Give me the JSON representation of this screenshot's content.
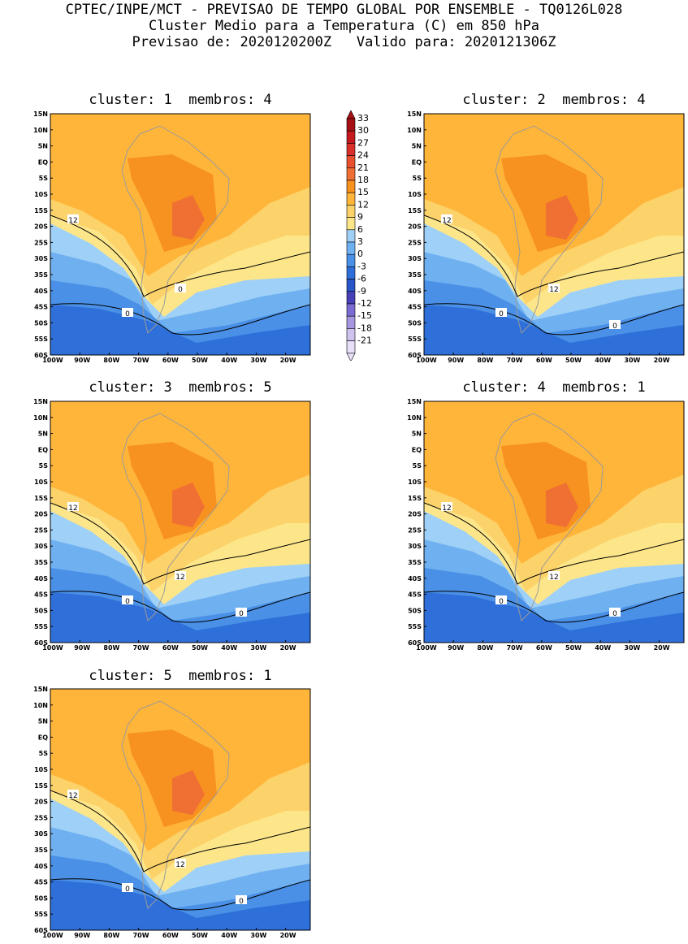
{
  "header": {
    "line1": "CPTEC/INPE/MCT - PREVISAO DE TEMPO GLOBAL POR ENSEMBLE - TQ0126L028",
    "line2": "Cluster Medio para a Temperatura (C) em 850 hPa",
    "line3": "Previsao de: 2020120200Z   Valido para: 2020121306Z"
  },
  "panels": [
    {
      "title": "cluster: 1  membros: 4",
      "contour_labels": [
        "12",
        "0",
        "0"
      ]
    },
    {
      "title": "cluster: 2  membros: 4",
      "contour_labels": [
        "12",
        "12",
        "0",
        "0"
      ]
    },
    {
      "title": "cluster: 3  membros: 5",
      "contour_labels": [
        "12",
        "12",
        "0",
        "0"
      ]
    },
    {
      "title": "cluster: 4  membros: 1",
      "contour_labels": [
        "12",
        "12",
        "0",
        "0"
      ]
    },
    {
      "title": "cluster: 5  membros: 1",
      "contour_labels": [
        "12",
        "12",
        "0",
        "0"
      ]
    }
  ],
  "lat_labels": [
    "15N",
    "10N",
    "5N",
    "EQ",
    "5S",
    "10S",
    "15S",
    "20S",
    "25S",
    "30S",
    "35S",
    "40S",
    "45S",
    "50S",
    "55S",
    "60S"
  ],
  "lon_labels": [
    "100W",
    "90W",
    "80W",
    "70W",
    "60W",
    "50W",
    "40W",
    "30W",
    "20W"
  ],
  "colorbar": {
    "labels": [
      "33",
      "30",
      "27",
      "24",
      "21",
      "18",
      "15",
      "12",
      "9",
      "6",
      "3",
      "0",
      "-3",
      "-6",
      "-9",
      "-12",
      "-15",
      "-18",
      "-21"
    ],
    "colors": [
      "#a50f15",
      "#c41a1f",
      "#d9302a",
      "#e8502f",
      "#f07034",
      "#f7911f",
      "#ffb53a",
      "#fcd26a",
      "#fde68a",
      "#9fd0f7",
      "#6fb1f0",
      "#4a90e6",
      "#2f6fd9",
      "#2a55c8",
      "#4840b8",
      "#7a6cd2",
      "#a797e0",
      "#cec3ee",
      "#e8e0f8"
    ]
  }
}
